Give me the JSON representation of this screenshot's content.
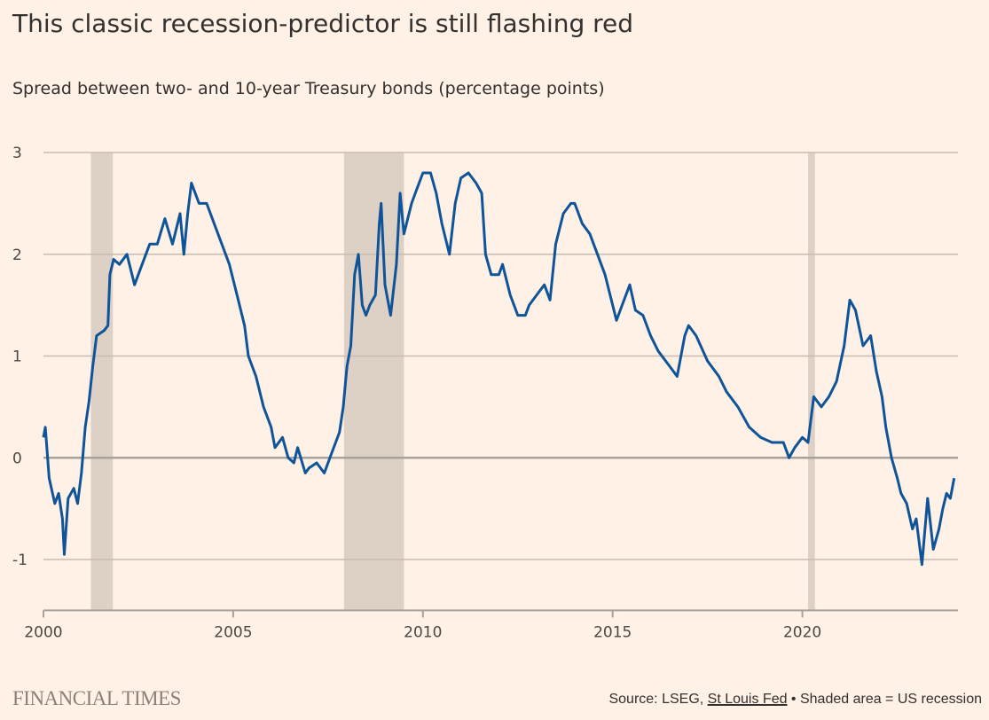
{
  "title": "This classic recession-predictor is still flashing red",
  "subtitle": "Spread between two- and 10-year Treasury bonds (percentage points)",
  "footer": {
    "logo": "FINANCIAL TIMES",
    "source_prefix": "Source: LSEG, ",
    "source_link": "St Louis Fed",
    "source_suffix": " • Shaded area = US recession"
  },
  "chart_data": {
    "type": "line",
    "title": "This classic recession-predictor is still flashing red",
    "subtitle": "Spread between two- and 10-year Treasury bonds (percentage points)",
    "xlim": [
      2000,
      2024.1
    ],
    "ylim": [
      -1.5,
      3
    ],
    "x_ticks": [
      2000,
      2005,
      2010,
      2015,
      2020
    ],
    "x_tick_labels": [
      "2000",
      "2005",
      "2010",
      "2015",
      "2020"
    ],
    "y_ticks": [
      3,
      2,
      1,
      0,
      -1
    ],
    "y_tick_labels": [
      "3",
      "2",
      "1",
      "0",
      "-1"
    ],
    "grid": true,
    "colors": {
      "line": "#0f5499",
      "recession": "#ddd1c5",
      "grid": "#c9bbb0",
      "zero": "#a7a29e"
    },
    "recessions": [
      [
        2001.25,
        2001.83
      ],
      [
        2007.92,
        2009.5
      ],
      [
        2020.15,
        2020.33
      ]
    ],
    "series": [
      {
        "x": [
          2000.0,
          2000.05,
          2000.15,
          2000.3,
          2000.4,
          2000.5,
          2000.55,
          2000.65,
          2000.8,
          2000.9,
          2001.0,
          2001.1,
          2001.2,
          2001.3,
          2001.4,
          2001.6,
          2001.7,
          2001.75,
          2001.85,
          2002.0,
          2002.2,
          2002.4,
          2002.6,
          2002.8,
          2003.0,
          2003.2,
          2003.4,
          2003.6,
          2003.7,
          2003.8,
          2003.9,
          2004.1,
          2004.3,
          2004.5,
          2004.7,
          2004.9,
          2005.1,
          2005.3,
          2005.4,
          2005.6,
          2005.8,
          2006.0,
          2006.1,
          2006.3,
          2006.45,
          2006.6,
          2006.7,
          2006.9,
          2007.0,
          2007.2,
          2007.4,
          2007.6,
          2007.8,
          2007.9,
          2008.0,
          2008.1,
          2008.2,
          2008.3,
          2008.4,
          2008.5,
          2008.6,
          2008.75,
          2008.85,
          2008.9,
          2009.0,
          2009.15,
          2009.3,
          2009.4,
          2009.5,
          2009.7,
          2009.8,
          2010.0,
          2010.2,
          2010.35,
          2010.5,
          2010.7,
          2010.85,
          2011.0,
          2011.2,
          2011.4,
          2011.55,
          2011.65,
          2011.8,
          2012.0,
          2012.1,
          2012.3,
          2012.5,
          2012.7,
          2012.8,
          2013.0,
          2013.2,
          2013.35,
          2013.5,
          2013.7,
          2013.9,
          2014.0,
          2014.2,
          2014.4,
          2014.6,
          2014.8,
          2015.0,
          2015.1,
          2015.25,
          2015.45,
          2015.6,
          2015.8,
          2016.0,
          2016.2,
          2016.5,
          2016.7,
          2016.9,
          2017.0,
          2017.2,
          2017.5,
          2017.8,
          2018.0,
          2018.3,
          2018.6,
          2018.9,
          2019.2,
          2019.5,
          2019.65,
          2019.8,
          2020.0,
          2020.15,
          2020.3,
          2020.5,
          2020.7,
          2020.9,
          2021.1,
          2021.25,
          2021.4,
          2021.6,
          2021.8,
          2021.95,
          2022.1,
          2022.2,
          2022.35,
          2022.5,
          2022.6,
          2022.75,
          2022.9,
          2023.0,
          2023.15,
          2023.3,
          2023.45,
          2023.6,
          2023.7,
          2023.8,
          2023.9,
          2024.0
        ],
        "y": [
          0.2,
          0.3,
          -0.2,
          -0.45,
          -0.35,
          -0.6,
          -0.95,
          -0.4,
          -0.3,
          -0.45,
          -0.15,
          0.3,
          0.55,
          0.9,
          1.2,
          1.25,
          1.3,
          1.8,
          1.95,
          1.9,
          2.0,
          1.7,
          1.9,
          2.1,
          2.1,
          2.35,
          2.1,
          2.4,
          2.0,
          2.4,
          2.7,
          2.5,
          2.5,
          2.3,
          2.1,
          1.9,
          1.6,
          1.3,
          1.0,
          0.8,
          0.5,
          0.3,
          0.1,
          0.2,
          0.0,
          -0.05,
          0.1,
          -0.15,
          -0.1,
          -0.05,
          -0.15,
          0.05,
          0.25,
          0.5,
          0.9,
          1.1,
          1.8,
          2.0,
          1.5,
          1.4,
          1.5,
          1.6,
          2.3,
          2.5,
          1.7,
          1.4,
          1.9,
          2.6,
          2.2,
          2.5,
          2.6,
          2.8,
          2.8,
          2.6,
          2.3,
          2.0,
          2.5,
          2.75,
          2.8,
          2.7,
          2.6,
          2.0,
          1.8,
          1.8,
          1.9,
          1.6,
          1.4,
          1.4,
          1.5,
          1.6,
          1.7,
          1.55,
          2.1,
          2.4,
          2.5,
          2.5,
          2.3,
          2.2,
          2.0,
          1.8,
          1.5,
          1.35,
          1.5,
          1.7,
          1.45,
          1.4,
          1.2,
          1.05,
          0.9,
          0.8,
          1.2,
          1.3,
          1.2,
          0.95,
          0.8,
          0.65,
          0.5,
          0.3,
          0.2,
          0.15,
          0.15,
          0.0,
          0.1,
          0.2,
          0.15,
          0.6,
          0.5,
          0.6,
          0.75,
          1.1,
          1.55,
          1.45,
          1.1,
          1.2,
          0.85,
          0.6,
          0.3,
          0.0,
          -0.2,
          -0.35,
          -0.45,
          -0.7,
          -0.6,
          -1.05,
          -0.4,
          -0.9,
          -0.7,
          -0.5,
          -0.35,
          -0.4,
          -0.2
        ]
      }
    ]
  }
}
